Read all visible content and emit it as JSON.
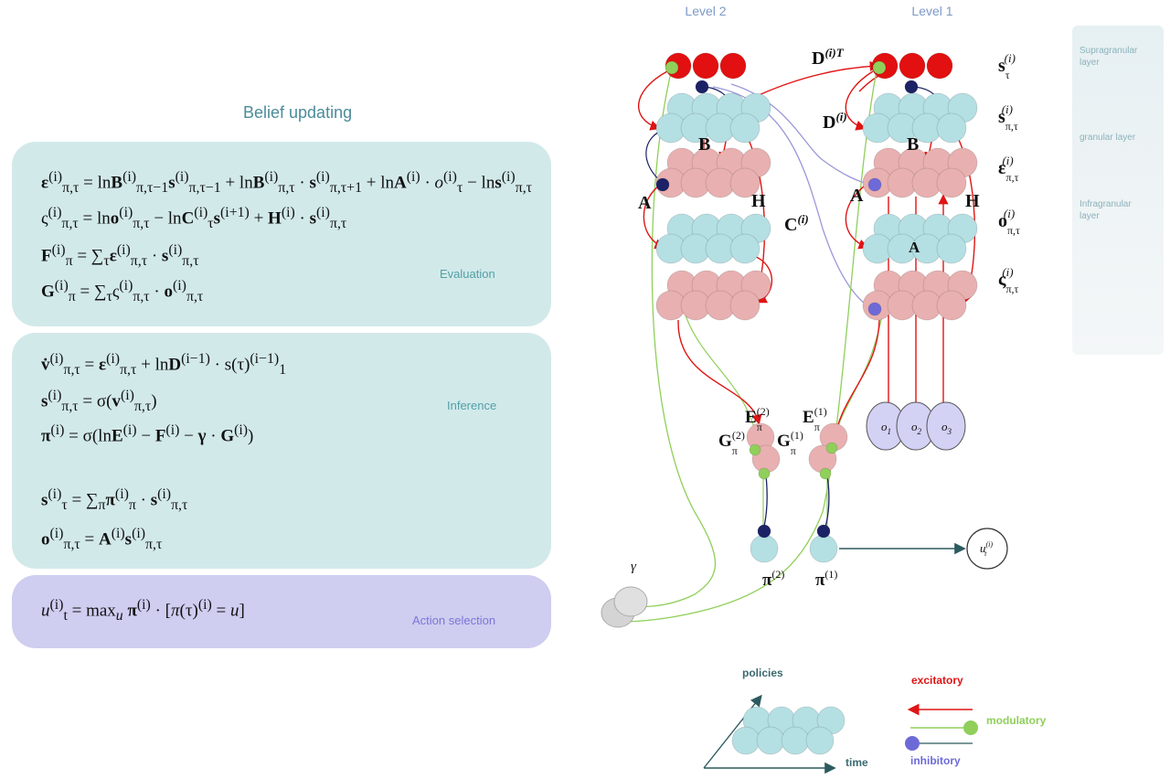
{
  "left": {
    "title": "Belief updating",
    "evaluation": {
      "label": "Evaluation",
      "equations": [
        "ε(i)π,τ = ln B(i)π,τ−1 s(i)π,τ−1 + ln B(i)π,τ · s(i)π,τ+1 + ln A(i) · o(i)τ − ln s(i)π,τ",
        "ς(i)π,τ = ln o(i)π,τ − ln C(i)τ s(i+1) + H(i) · s(i)π,τ",
        "F(i)π = ∑τ ε(i)π,τ · s(i)π,τ",
        "G(i)π = ∑τ ς(i)π,τ · o(i)π,τ"
      ]
    },
    "inference": {
      "label": "Inference",
      "equations": [
        "v̇(i)π,τ = ε(i)π,τ + ln D(i−1) · s(τ)(i−1)1",
        "s(i)π,τ = σ(v(i)π,τ)",
        "π(i) = σ(ln E(i) − F(i) − γ · G(i))",
        "s(i)τ = ∑π π(i)π · s(i)π,τ",
        "o(i)π,τ = A(i) s(i)π,τ"
      ]
    },
    "action": {
      "label": "Action selection",
      "equation": "u(i)t = maxu π(i) · [π(τ)(i) = u]"
    }
  },
  "diagram": {
    "level2": "Level 2",
    "level1": "Level 1",
    "row_labels": [
      "s(i)τ",
      "s(i)π,τ",
      "ε(i)π,τ",
      "o(i)π,τ",
      "ς(i)π,τ"
    ],
    "layers": [
      "Supragranular layer",
      "granular layer",
      "Infragranular layer"
    ],
    "letters": {
      "D_T": "D(i)T",
      "D": "D(i)",
      "C": "C(i)",
      "A": "A",
      "B": "B",
      "H": "H"
    },
    "obs": [
      "o1",
      "o2",
      "o3"
    ],
    "E2": "E(2)π",
    "E1": "E(1)π",
    "G2": "G(2)π",
    "G1": "G(1)π",
    "pi2": "π(2)",
    "pi1": "π(1)",
    "gamma": "γ",
    "u": "u(i)t"
  },
  "legend": {
    "policies": "policies",
    "time": "time",
    "excitatory": "excitatory",
    "modulatory": "modulatory",
    "inhibitory": "inhibitory"
  },
  "colors": {
    "state_red": "#e21010",
    "state_teal": "#b4dfe3",
    "error_pink": "#e8b0b0",
    "excitatory": "#e01414",
    "modulatory": "#8fcf5a",
    "inhibitory": "#1c2266",
    "connection_purple": "#9a98d8"
  }
}
